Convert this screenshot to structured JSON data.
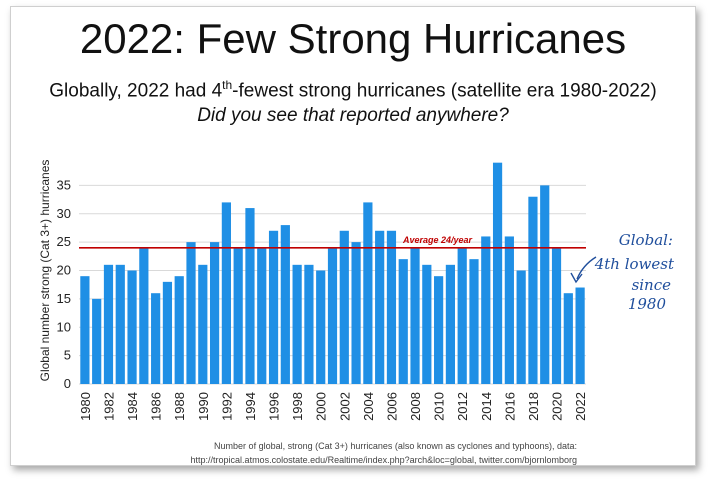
{
  "slide": {
    "title": "2022: Few Strong Hurricanes",
    "subtitle_main": "Globally, 2022 had 4",
    "subtitle_sup": "th",
    "subtitle_rest": "-fewest strong hurricanes (satellite era 1980-2022)",
    "question": "Did you see that reported anywhere?",
    "source_line1": "Number of global, strong (Cat 3+) hurricanes (also known as cyclones and typhoons), data:",
    "source_line2": "http://tropical.atmos.colostate.edu/Realtime/index.php?arch&loc=global, twitter.com/bjornlomborg",
    "handwritten": [
      "Global:",
      "4th lowest",
      "since",
      "1980"
    ]
  },
  "chart_data": {
    "type": "bar",
    "categories": [
      "1980",
      "1981",
      "1982",
      "1983",
      "1984",
      "1985",
      "1986",
      "1987",
      "1988",
      "1989",
      "1990",
      "1991",
      "1992",
      "1993",
      "1994",
      "1995",
      "1996",
      "1997",
      "1998",
      "1999",
      "2000",
      "2001",
      "2002",
      "2003",
      "2004",
      "2005",
      "2006",
      "2007",
      "2008",
      "2009",
      "2010",
      "2011",
      "2012",
      "2013",
      "2014",
      "2015",
      "2016",
      "2017",
      "2018",
      "2019",
      "2020",
      "2021",
      "2022"
    ],
    "values": [
      19,
      15,
      21,
      21,
      20,
      24,
      16,
      18,
      19,
      25,
      21,
      25,
      32,
      24,
      31,
      24,
      27,
      28,
      21,
      21,
      20,
      24,
      27,
      25,
      32,
      27,
      27,
      22,
      24,
      21,
      19,
      21,
      24,
      22,
      26,
      39,
      26,
      20,
      33,
      35,
      24,
      16,
      17
    ],
    "ylabel": "Global number strong (Cat 3+) hurricanes",
    "xlabel": "",
    "ylim": [
      0,
      40
    ],
    "yticks": [
      "0",
      "5",
      "10",
      "15",
      "20",
      "25",
      "30",
      "35"
    ],
    "average_value": 24,
    "average_label": "Average 24/year",
    "bar_color": "#1f8fe5",
    "average_color": "#c00000",
    "grid": true
  }
}
